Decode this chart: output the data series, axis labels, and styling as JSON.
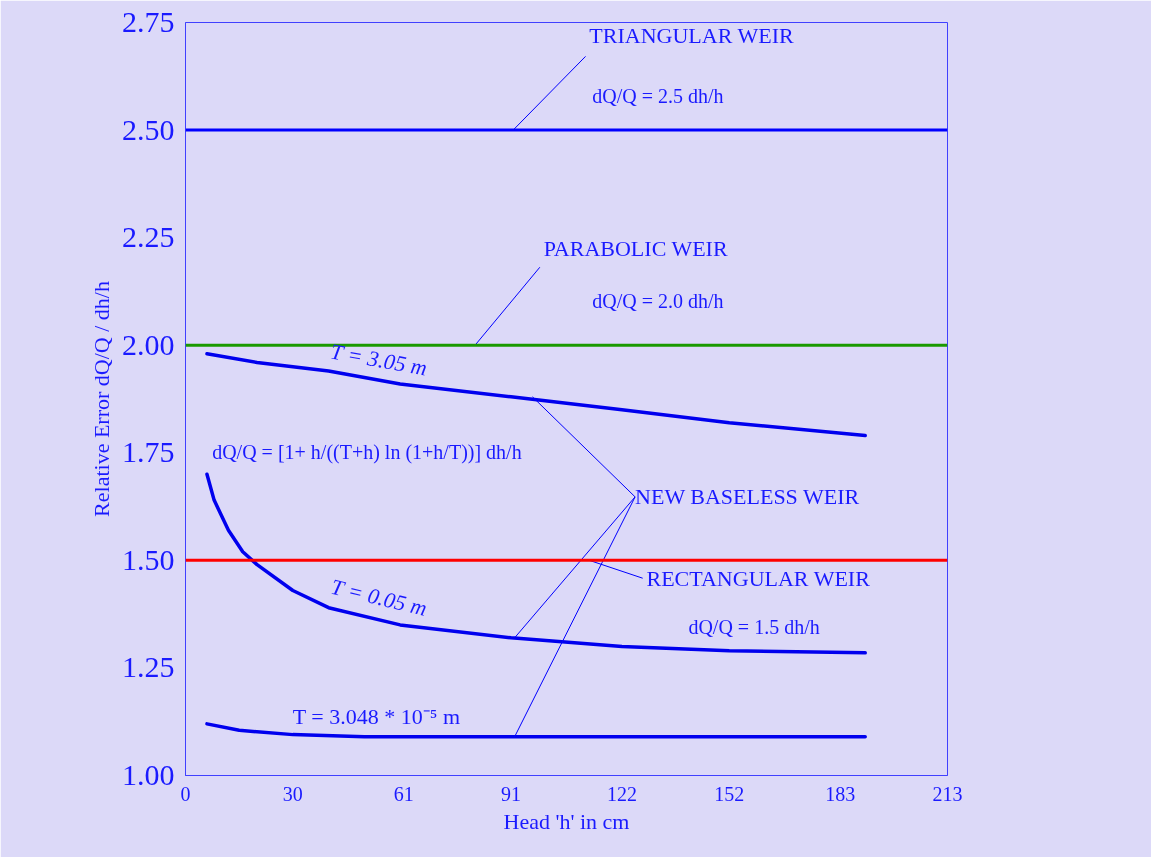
{
  "chart_data": {
    "type": "line",
    "xlabel": "Head 'h' in cm",
    "ylabel": "Relative Error dQ/Q / dh/h",
    "xlim": [
      0,
      213
    ],
    "xticks": [
      0,
      30,
      61,
      91,
      122,
      152,
      183,
      213
    ],
    "ylim": [
      1.0,
      2.75
    ],
    "yticks": [
      {
        "value": 1.0,
        "label": "1.00"
      },
      1.25,
      {
        "value": 1.5,
        "label": "1.50"
      },
      1.75,
      {
        "value": 2.0,
        "label": "2.00"
      },
      2.25,
      {
        "value": 2.5,
        "label": "2.50"
      },
      2.75
    ],
    "grid": false,
    "legend": false,
    "marker": "none",
    "line_style": "solid",
    "series": [
      {
        "name": "T = 3.05 m",
        "color": "#0000ee",
        "x": [
          6,
          20,
          40,
          60,
          91,
          122,
          152,
          190
        ],
        "values": [
          1.98,
          1.96,
          1.94,
          1.91,
          1.88,
          1.85,
          1.82,
          1.79
        ]
      },
      {
        "name": "T = 0.05 m",
        "color": "#0000ee",
        "x": [
          6,
          8,
          12,
          16,
          20,
          30,
          40,
          60,
          91,
          122,
          152,
          190
        ],
        "values": [
          1.7,
          1.64,
          1.57,
          1.52,
          1.49,
          1.43,
          1.39,
          1.35,
          1.32,
          1.3,
          1.29,
          1.285
        ]
      },
      {
        "name": "T = 3.048 * 10⁻⁵ m",
        "color": "#0000ee",
        "x": [
          6,
          15,
          30,
          50,
          91,
          122,
          190
        ],
        "values": [
          1.12,
          1.105,
          1.095,
          1.09,
          1.09,
          1.09,
          1.09
        ]
      }
    ],
    "ref_lines": [
      {
        "axis": "y",
        "value": 2.5,
        "label": "TRIANGULAR WEIR",
        "color": "#0000ff"
      },
      {
        "axis": "y",
        "value": 2.0,
        "label": "PARABOLIC WEIR",
        "color": "#1a9a00"
      },
      {
        "axis": "y",
        "value": 1.5,
        "label": "RECTANGULAR WEIR",
        "color": "#ff0000"
      }
    ],
    "annotations": [
      "dQ/Q = 2.5 dh/h",
      "dQ/Q = 2.0 dh/h",
      "dQ/Q = 1.5 dh/h",
      "dQ/Q = [1+ h/((T+h) ln (1+h/T))] dh/h",
      {
        "text": "NEW BASELESS WEIR",
        "x": 91,
        "y": 1.32
      }
    ]
  }
}
